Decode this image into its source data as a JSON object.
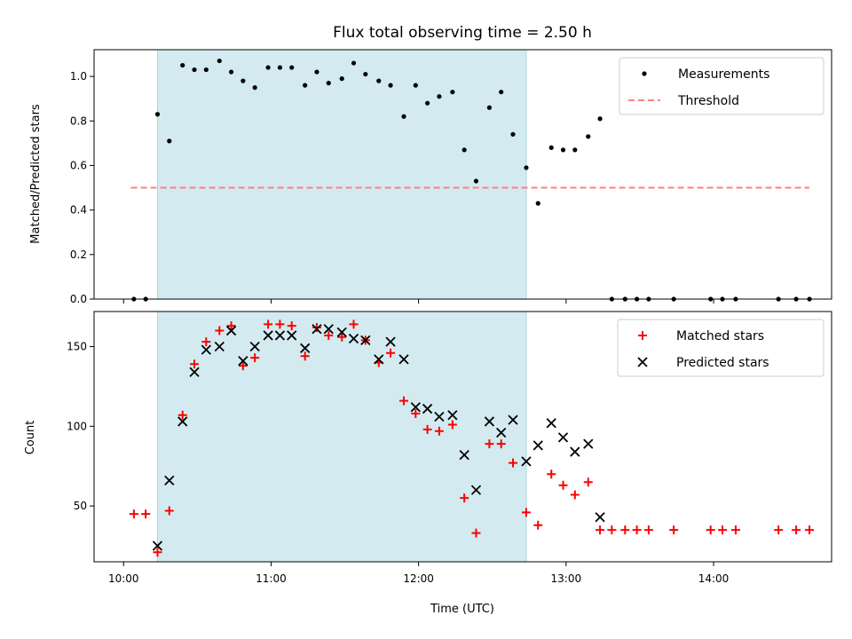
{
  "colors": {
    "shade": "#d3ebf0",
    "shade_edge": "#a8d8e0",
    "measurement": "#000000",
    "threshold": "#ff7f7f",
    "matched": "#ff0000",
    "predicted": "#000000"
  },
  "chart_data": [
    {
      "type": "scatter",
      "title": "Flux total observing time = 2.50 h",
      "xlabel": "",
      "ylabel": "Matched/Predicted stars",
      "xlim": [
        9.8,
        14.8
      ],
      "ylim": [
        0.0,
        1.12
      ],
      "yticks": [
        0.0,
        0.2,
        0.4,
        0.6,
        0.8,
        1.0
      ],
      "ytick_labels": [
        "0.0",
        "0.2",
        "0.4",
        "0.6",
        "0.8",
        "1.0"
      ],
      "shaded_span": [
        10.23,
        12.73
      ],
      "legend": {
        "placement": "upper right",
        "entries": [
          "Measurements",
          "Threshold"
        ]
      },
      "series": [
        {
          "name": "Measurements",
          "marker": "dot",
          "x": [
            10.07,
            10.15,
            10.23,
            10.31,
            10.4,
            10.48,
            10.56,
            10.65,
            10.73,
            10.81,
            10.89,
            10.98,
            11.06,
            11.14,
            11.23,
            11.31,
            11.39,
            11.48,
            11.56,
            11.64,
            11.73,
            11.81,
            11.9,
            11.98,
            12.06,
            12.14,
            12.23,
            12.31,
            12.39,
            12.48,
            12.56,
            12.64,
            12.73,
            12.81,
            12.9,
            12.98,
            13.06,
            13.15,
            13.23,
            13.31,
            13.4,
            13.48,
            13.56,
            13.73,
            13.98,
            14.06,
            14.15,
            14.44,
            14.56,
            14.65
          ],
          "y": [
            0.0,
            0.0,
            0.83,
            0.71,
            1.05,
            1.03,
            1.03,
            1.07,
            1.02,
            0.98,
            0.95,
            1.04,
            1.04,
            1.04,
            0.96,
            1.02,
            0.97,
            0.99,
            1.06,
            1.01,
            0.98,
            0.96,
            0.82,
            0.96,
            0.88,
            0.91,
            0.93,
            0.67,
            0.53,
            0.86,
            0.93,
            0.74,
            0.59,
            0.43,
            0.68,
            0.67,
            0.67,
            0.73,
            0.81,
            0.0,
            0.0,
            0.0,
            0.0,
            0.0,
            0.0,
            0.0,
            0.0,
            0.0,
            0.0,
            0.0
          ]
        },
        {
          "name": "Threshold",
          "marker": "dashed-line",
          "x": [
            10.05,
            14.65
          ],
          "y": [
            0.5,
            0.5
          ]
        }
      ]
    },
    {
      "type": "scatter",
      "title": "",
      "xlabel": "Time (UTC)",
      "ylabel": "Count",
      "xlim": [
        9.8,
        14.8
      ],
      "ylim": [
        15,
        172
      ],
      "xticks": [
        10,
        11,
        12,
        13,
        14
      ],
      "xtick_labels": [
        "10:00",
        "11:00",
        "12:00",
        "13:00",
        "14:00"
      ],
      "yticks": [
        50,
        100,
        150
      ],
      "ytick_labels": [
        "50",
        "100",
        "150"
      ],
      "shaded_span": [
        10.23,
        12.73
      ],
      "legend": {
        "placement": "upper right",
        "entries": [
          "Matched stars",
          "Predicted stars"
        ]
      },
      "series": [
        {
          "name": "Matched stars",
          "marker": "plus",
          "x": [
            10.07,
            10.15,
            10.23,
            10.31,
            10.4,
            10.48,
            10.56,
            10.65,
            10.73,
            10.81,
            10.89,
            10.98,
            11.06,
            11.14,
            11.23,
            11.31,
            11.39,
            11.48,
            11.56,
            11.64,
            11.73,
            11.81,
            11.9,
            11.98,
            12.06,
            12.14,
            12.23,
            12.31,
            12.39,
            12.48,
            12.56,
            12.64,
            12.73,
            12.81,
            12.9,
            12.98,
            13.06,
            13.15,
            13.23,
            13.31,
            13.4,
            13.48,
            13.56,
            13.73,
            13.98,
            14.06,
            14.15,
            14.44,
            14.56,
            14.65
          ],
          "y": [
            45,
            45,
            21,
            47,
            107,
            139,
            153,
            160,
            163,
            138,
            143,
            164,
            164,
            163,
            144,
            162,
            157,
            156,
            164,
            154,
            140,
            146,
            116,
            108,
            98,
            97,
            101,
            55,
            33,
            89,
            89,
            77,
            46,
            38,
            70,
            63,
            57,
            65,
            35,
            35,
            35,
            35,
            35,
            35,
            35,
            35,
            35,
            35,
            35,
            35
          ]
        },
        {
          "name": "Predicted stars",
          "marker": "x",
          "x": [
            10.23,
            10.31,
            10.4,
            10.48,
            10.56,
            10.65,
            10.73,
            10.81,
            10.89,
            10.98,
            11.06,
            11.14,
            11.23,
            11.31,
            11.39,
            11.48,
            11.56,
            11.64,
            11.73,
            11.81,
            11.9,
            11.98,
            12.06,
            12.14,
            12.23,
            12.31,
            12.39,
            12.48,
            12.56,
            12.64,
            12.73,
            12.81,
            12.9,
            12.98,
            13.06,
            13.15,
            13.23
          ],
          "y": [
            25,
            66,
            103,
            134,
            148,
            150,
            160,
            141,
            150,
            157,
            157,
            157,
            149,
            161,
            161,
            159,
            155,
            154,
            142,
            153,
            142,
            112,
            111,
            106,
            107,
            82,
            60,
            103,
            96,
            104,
            78,
            88,
            102,
            93,
            84,
            89,
            43
          ]
        }
      ]
    }
  ]
}
